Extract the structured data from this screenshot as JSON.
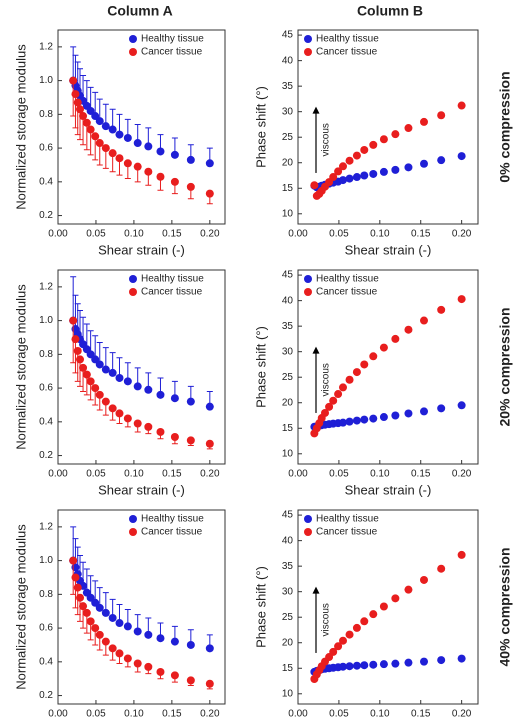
{
  "column_headers": [
    "Column A",
    "Column B"
  ],
  "row_labels": [
    "0% compression",
    "20% compression",
    "40% compression"
  ],
  "chart_data": [
    {
      "type": "scatter",
      "xlabel": "Shear strain (-)",
      "ylabel": "Normalized storage modulus",
      "legend": "upper right",
      "x": [
        0.02,
        0.023,
        0.026,
        0.029,
        0.033,
        0.038,
        0.043,
        0.049,
        0.055,
        0.063,
        0.072,
        0.081,
        0.092,
        0.105,
        0.119,
        0.135,
        0.154,
        0.175,
        0.2
      ],
      "xlim": [
        0,
        0.22
      ],
      "xticks": [
        {
          "value": 0,
          "label": "0.00"
        },
        0.05,
        {
          "value": 0.1,
          "label": "0.10"
        },
        0.15,
        {
          "value": 0.2,
          "label": "0.20"
        }
      ],
      "ylim": [
        0.15,
        1.3
      ],
      "yticks": [
        0.2,
        0.4,
        0.6,
        0.8,
        {
          "value": 1,
          "label": "1.0"
        },
        1.2
      ],
      "series": [
        {
          "name": "Healthy tissue",
          "color": "#1f1fd6",
          "error_side": "up",
          "values": [
            1.0,
            0.97,
            0.94,
            0.91,
            0.88,
            0.85,
            0.82,
            0.79,
            0.76,
            0.73,
            0.71,
            0.68,
            0.66,
            0.63,
            0.61,
            0.58,
            0.56,
            0.53,
            0.51
          ],
          "errors": [
            0.2,
            0.18,
            0.17,
            0.16,
            0.15,
            0.15,
            0.14,
            0.14,
            0.13,
            0.13,
            0.12,
            0.12,
            0.11,
            0.11,
            0.11,
            0.1,
            0.1,
            0.09,
            0.09
          ]
        },
        {
          "name": "Cancer tissue",
          "color": "#e81e1e",
          "error_side": "down",
          "values": [
            1.0,
            0.92,
            0.87,
            0.83,
            0.79,
            0.75,
            0.71,
            0.67,
            0.63,
            0.6,
            0.57,
            0.54,
            0.51,
            0.49,
            0.46,
            0.43,
            0.4,
            0.37,
            0.33
          ],
          "errors": [
            0.21,
            0.2,
            0.19,
            0.18,
            0.17,
            0.16,
            0.15,
            0.14,
            0.13,
            0.12,
            0.11,
            0.1,
            0.09,
            0.09,
            0.08,
            0.08,
            0.07,
            0.07,
            0.06
          ]
        }
      ]
    },
    {
      "type": "scatter",
      "xlabel": "Shear strain (-)",
      "ylabel": "Phase shift (°)",
      "legend": "upper left",
      "annotation": "viscous",
      "x": [
        0.02,
        0.023,
        0.026,
        0.029,
        0.033,
        0.038,
        0.043,
        0.049,
        0.055,
        0.063,
        0.072,
        0.081,
        0.092,
        0.105,
        0.119,
        0.135,
        0.154,
        0.175,
        0.2
      ],
      "xlim": [
        0,
        0.22
      ],
      "xticks": [
        {
          "value": 0,
          "label": "0.00"
        },
        0.05,
        {
          "value": 0.1,
          "label": "0.10"
        },
        0.15,
        {
          "value": 0.2,
          "label": "0.20"
        }
      ],
      "ylim": [
        8,
        46
      ],
      "yticks": [
        10,
        15,
        20,
        25,
        30,
        35,
        40,
        45
      ],
      "series": [
        {
          "name": "Healthy tissue",
          "color": "#1f1fd6",
          "values": [
            15.5,
            15.2,
            15.3,
            15.5,
            15.7,
            15.9,
            16.1,
            16.3,
            16.6,
            16.9,
            17.2,
            17.5,
            17.8,
            18.2,
            18.6,
            19.1,
            19.8,
            20.5,
            21.3
          ]
        },
        {
          "name": "Cancer tissue",
          "color": "#e81e1e",
          "values": [
            15.6,
            13.5,
            13.9,
            14.5,
            15.3,
            16.2,
            17.2,
            18.3,
            19.3,
            20.4,
            21.4,
            22.5,
            23.5,
            24.6,
            25.6,
            26.8,
            28.0,
            29.3,
            31.2
          ]
        }
      ]
    },
    {
      "type": "scatter",
      "xlabel": "Shear strain (-)",
      "ylabel": "Normalized storage modulus",
      "legend": "upper right",
      "x": [
        0.02,
        0.023,
        0.026,
        0.029,
        0.033,
        0.038,
        0.043,
        0.049,
        0.055,
        0.063,
        0.072,
        0.081,
        0.092,
        0.105,
        0.119,
        0.135,
        0.154,
        0.175,
        0.2
      ],
      "xlim": [
        0,
        0.22
      ],
      "xticks": [
        {
          "value": 0,
          "label": "0.00"
        },
        0.05,
        {
          "value": 0.1,
          "label": "0.10"
        },
        0.15,
        {
          "value": 0.2,
          "label": "0.20"
        }
      ],
      "ylim": [
        0.15,
        1.3
      ],
      "yticks": [
        0.2,
        0.4,
        0.6,
        0.8,
        {
          "value": 1,
          "label": "1.0"
        },
        1.2
      ],
      "series": [
        {
          "name": "Healthy tissue",
          "color": "#1f1fd6",
          "error_side": "up",
          "values": [
            1.0,
            0.95,
            0.92,
            0.89,
            0.86,
            0.83,
            0.8,
            0.77,
            0.74,
            0.71,
            0.69,
            0.66,
            0.64,
            0.61,
            0.59,
            0.56,
            0.54,
            0.52,
            0.49
          ],
          "errors": [
            0.26,
            0.2,
            0.18,
            0.17,
            0.16,
            0.15,
            0.14,
            0.14,
            0.13,
            0.13,
            0.12,
            0.12,
            0.11,
            0.11,
            0.1,
            0.1,
            0.1,
            0.09,
            0.09
          ]
        },
        {
          "name": "Cancer tissue",
          "color": "#e81e1e",
          "error_side": "down",
          "values": [
            1.0,
            0.89,
            0.82,
            0.77,
            0.72,
            0.68,
            0.64,
            0.6,
            0.56,
            0.52,
            0.48,
            0.45,
            0.42,
            0.39,
            0.37,
            0.34,
            0.31,
            0.29,
            0.27
          ],
          "errors": [
            0.25,
            0.2,
            0.18,
            0.16,
            0.14,
            0.12,
            0.11,
            0.1,
            0.09,
            0.08,
            0.07,
            0.06,
            0.05,
            0.05,
            0.04,
            0.04,
            0.04,
            0.03,
            0.03
          ]
        }
      ]
    },
    {
      "type": "scatter",
      "xlabel": "Shear strain (-)",
      "ylabel": "Phase shift (°)",
      "legend": "upper left",
      "annotation": "viscous",
      "x": [
        0.02,
        0.023,
        0.026,
        0.029,
        0.033,
        0.038,
        0.043,
        0.049,
        0.055,
        0.063,
        0.072,
        0.081,
        0.092,
        0.105,
        0.119,
        0.135,
        0.154,
        0.175,
        0.2
      ],
      "xlim": [
        0,
        0.22
      ],
      "xticks": [
        {
          "value": 0,
          "label": "0.00"
        },
        0.05,
        {
          "value": 0.1,
          "label": "0.10"
        },
        0.15,
        {
          "value": 0.2,
          "label": "0.20"
        }
      ],
      "ylim": [
        8,
        46
      ],
      "yticks": [
        10,
        15,
        20,
        25,
        30,
        35,
        40,
        45
      ],
      "series": [
        {
          "name": "Healthy tissue",
          "color": "#1f1fd6",
          "values": [
            15.3,
            15.4,
            15.5,
            15.6,
            15.7,
            15.8,
            15.9,
            16.0,
            16.1,
            16.3,
            16.5,
            16.7,
            16.9,
            17.2,
            17.5,
            17.9,
            18.3,
            18.9,
            19.5
          ]
        },
        {
          "name": "Cancer tissue",
          "color": "#e81e1e",
          "values": [
            14.0,
            15.0,
            16.0,
            17.0,
            18.0,
            19.2,
            20.4,
            21.7,
            23.0,
            24.5,
            26.0,
            27.5,
            29.1,
            30.8,
            32.5,
            34.3,
            36.1,
            38.2,
            40.3
          ]
        }
      ]
    },
    {
      "type": "scatter",
      "xlabel": "Shear strain (-)",
      "ylabel": "Normalized storage modulus",
      "legend": "upper right",
      "x": [
        0.02,
        0.023,
        0.026,
        0.029,
        0.033,
        0.038,
        0.043,
        0.049,
        0.055,
        0.063,
        0.072,
        0.081,
        0.092,
        0.105,
        0.119,
        0.135,
        0.154,
        0.175,
        0.2
      ],
      "xlim": [
        0,
        0.22
      ],
      "xticks": [
        {
          "value": 0,
          "label": "0.00"
        },
        0.05,
        {
          "value": 0.1,
          "label": "0.10"
        },
        0.15,
        {
          "value": 0.2,
          "label": "0.20"
        }
      ],
      "ylim": [
        0.15,
        1.3
      ],
      "yticks": [
        0.2,
        0.4,
        0.6,
        0.8,
        {
          "value": 1,
          "label": "1.0"
        },
        1.2
      ],
      "series": [
        {
          "name": "Healthy tissue",
          "color": "#1f1fd6",
          "error_side": "up",
          "values": [
            1.0,
            0.96,
            0.92,
            0.88,
            0.85,
            0.81,
            0.78,
            0.75,
            0.72,
            0.69,
            0.66,
            0.63,
            0.61,
            0.58,
            0.56,
            0.54,
            0.52,
            0.5,
            0.48
          ],
          "errors": [
            0.2,
            0.17,
            0.16,
            0.15,
            0.14,
            0.14,
            0.13,
            0.13,
            0.12,
            0.12,
            0.11,
            0.11,
            0.1,
            0.1,
            0.1,
            0.09,
            0.09,
            0.09,
            0.08
          ]
        },
        {
          "name": "Cancer tissue",
          "color": "#e81e1e",
          "error_side": "down",
          "values": [
            1.0,
            0.9,
            0.84,
            0.78,
            0.73,
            0.69,
            0.64,
            0.6,
            0.56,
            0.52,
            0.48,
            0.45,
            0.42,
            0.39,
            0.37,
            0.34,
            0.32,
            0.29,
            0.27
          ],
          "errors": [
            0.2,
            0.18,
            0.16,
            0.14,
            0.13,
            0.12,
            0.11,
            0.1,
            0.09,
            0.08,
            0.07,
            0.06,
            0.05,
            0.05,
            0.04,
            0.04,
            0.04,
            0.03,
            0.03
          ]
        }
      ]
    },
    {
      "type": "scatter",
      "xlabel": "Shear strain (-)",
      "ylabel": "Phase shift (°)",
      "legend": "upper left",
      "annotation": "viscous",
      "x": [
        0.02,
        0.023,
        0.026,
        0.029,
        0.033,
        0.038,
        0.043,
        0.049,
        0.055,
        0.063,
        0.072,
        0.081,
        0.092,
        0.105,
        0.119,
        0.135,
        0.154,
        0.175,
        0.2
      ],
      "xlim": [
        0,
        0.22
      ],
      "xticks": [
        {
          "value": 0,
          "label": "0.00"
        },
        0.05,
        {
          "value": 0.1,
          "label": "0.10"
        },
        0.15,
        {
          "value": 0.2,
          "label": "0.20"
        }
      ],
      "ylim": [
        8,
        46
      ],
      "yticks": [
        10,
        15,
        20,
        25,
        30,
        35,
        40,
        45
      ],
      "series": [
        {
          "name": "Healthy tissue",
          "color": "#1f1fd6",
          "values": [
            14.3,
            14.5,
            14.6,
            14.8,
            14.9,
            15.0,
            15.1,
            15.2,
            15.3,
            15.4,
            15.5,
            15.6,
            15.7,
            15.8,
            15.9,
            16.1,
            16.3,
            16.6,
            16.9
          ]
        },
        {
          "name": "Cancer tissue",
          "color": "#e81e1e",
          "values": [
            12.9,
            13.8,
            14.6,
            15.4,
            16.3,
            17.2,
            18.2,
            19.3,
            20.4,
            21.6,
            22.9,
            24.2,
            25.6,
            27.1,
            28.7,
            30.4,
            32.3,
            34.5,
            37.2
          ]
        }
      ]
    }
  ]
}
